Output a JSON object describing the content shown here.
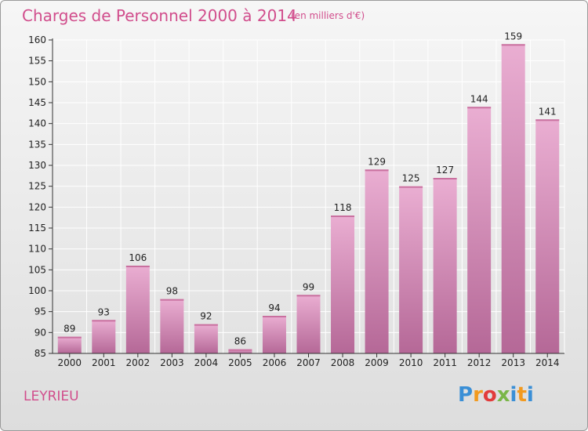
{
  "header": {
    "title": "Charges de Personnel 2000 à 2014",
    "subtitle": "(en milliers d'€)"
  },
  "footer": {
    "commune": "LEYRIEU",
    "logo": "Proxiti",
    "logo_colors": [
      "#3a8fd6",
      "#f29a1f",
      "#e23b3b",
      "#7ab648",
      "#3a8fd6",
      "#f29a1f",
      "#3a8fd6"
    ]
  },
  "chart_data": {
    "type": "bar",
    "categories": [
      "2000",
      "2001",
      "2002",
      "2003",
      "2004",
      "2005",
      "2006",
      "2007",
      "2008",
      "2009",
      "2010",
      "2011",
      "2012",
      "2013",
      "2014"
    ],
    "values": [
      89,
      93,
      106,
      98,
      92,
      86,
      94,
      99,
      118,
      129,
      125,
      127,
      144,
      159,
      141
    ],
    "ylim": [
      85,
      160
    ],
    "yticks": [
      85,
      90,
      95,
      100,
      105,
      110,
      115,
      120,
      125,
      130,
      135,
      140,
      145,
      150,
      155,
      160
    ],
    "grid": true,
    "colors": {
      "bar_light": "#e9a9cf",
      "bar_dark": "#b96b99",
      "text": "#222222",
      "grid": "#ffffff"
    }
  }
}
